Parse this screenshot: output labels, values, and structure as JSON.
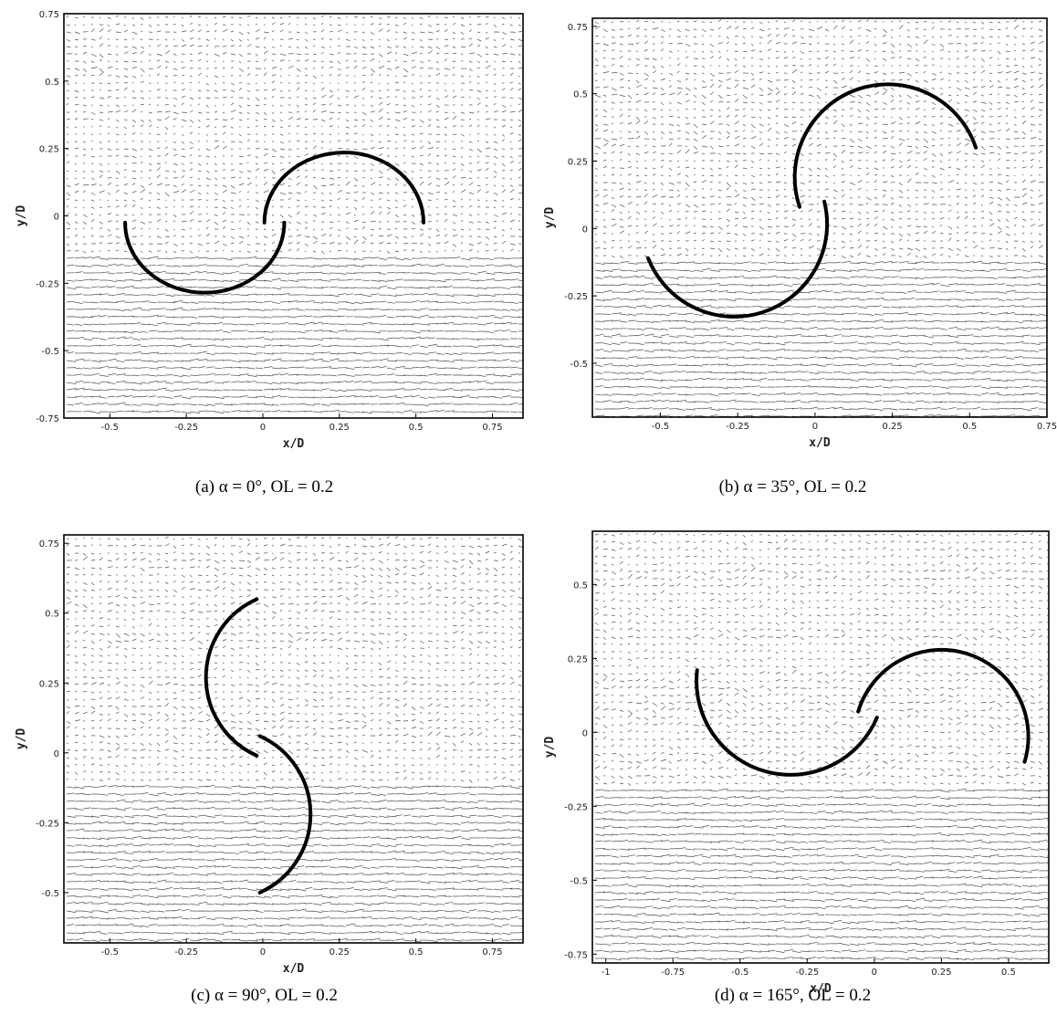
{
  "chart_data": [
    {
      "type": "vector-field",
      "panel": "a",
      "caption": "(a) α = 0°, OL = 0.2",
      "xlabel": "x/D",
      "ylabel": "y/D",
      "xlim": [
        -0.65,
        0.85
      ],
      "ylim": [
        -0.75,
        0.75
      ],
      "xticks": [
        -0.5,
        -0.25,
        0,
        0.25,
        0.5,
        0.75
      ],
      "xtick_labels": [
        "-0.5",
        "-0.25",
        "0",
        "0.25",
        "0.5",
        "0.75"
      ],
      "yticks": [
        -0.75,
        -0.5,
        -0.25,
        0,
        0.25,
        0.5,
        0.75
      ],
      "ytick_labels": [
        "-0.75",
        "-0.5",
        "-0.25",
        "0",
        "0.25",
        "0.5",
        "0.75"
      ],
      "blades": [
        {
          "center": [
            -0.19,
            -0.025
          ],
          "radius": 0.26,
          "start_deg": 180,
          "end_deg": 360,
          "direction": "below"
        },
        {
          "center": [
            0.265,
            -0.025
          ],
          "radius": 0.26,
          "start_deg": 180,
          "end_deg": 360,
          "direction": "above"
        }
      ]
    },
    {
      "type": "vector-field",
      "panel": "b",
      "caption": "(b) α = 35°, OL = 0.2",
      "xlabel": "x/D",
      "ylabel": "y/D",
      "xlim": [
        -0.72,
        0.75
      ],
      "ylim": [
        -0.7,
        0.78
      ],
      "xticks": [
        -0.5,
        -0.25,
        0,
        0.25,
        0.5,
        0.75
      ],
      "xtick_labels": [
        "-0.5",
        "-0.25",
        "0",
        "0.25",
        "0.5",
        "0.75"
      ],
      "yticks": [
        -0.5,
        -0.25,
        0,
        0.25,
        0.5,
        0.75
      ],
      "ytick_labels": [
        "-0.5",
        "-0.25",
        "0",
        "0.25",
        "0.5",
        "0.75"
      ],
      "blades": [
        {
          "start": [
            -0.54,
            -0.11
          ],
          "end": [
            0.03,
            0.1
          ],
          "radius": 0.3,
          "direction": "below"
        },
        {
          "start": [
            -0.05,
            0.08
          ],
          "end": [
            0.52,
            0.3
          ],
          "radius": 0.3,
          "direction": "above"
        }
      ]
    },
    {
      "type": "vector-field",
      "panel": "c",
      "caption": "(c) α = 90°, OL = 0.2",
      "xlabel": "x/D",
      "ylabel": "y/D",
      "xlim": [
        -0.65,
        0.85
      ],
      "ylim": [
        -0.68,
        0.78
      ],
      "xticks": [
        -0.5,
        -0.25,
        0,
        0.25,
        0.5,
        0.75
      ],
      "xtick_labels": [
        "-0.5",
        "-0.25",
        "0",
        "0.25",
        "0.5",
        "0.75"
      ],
      "yticks": [
        -0.5,
        -0.25,
        0,
        0.25,
        0.5,
        0.75
      ],
      "ytick_labels": [
        "-0.5",
        "-0.25",
        "0",
        "0.25",
        "0.5",
        "0.75"
      ],
      "blades": [
        {
          "start": [
            -0.02,
            0.55
          ],
          "end": [
            -0.02,
            -0.01
          ],
          "radius": 0.28,
          "direction": "left"
        },
        {
          "start": [
            -0.01,
            0.06
          ],
          "end": [
            -0.01,
            -0.5
          ],
          "radius": 0.28,
          "direction": "right"
        }
      ]
    },
    {
      "type": "vector-field",
      "panel": "d",
      "caption": "(d) α = 165°, OL = 0.2",
      "xlabel": "x/D",
      "ylabel": "y/D",
      "xlim": [
        -1.05,
        0.65
      ],
      "ylim": [
        -0.78,
        0.68
      ],
      "xticks": [
        -1,
        -0.75,
        -0.5,
        -0.25,
        0,
        0.25,
        0.5
      ],
      "xtick_labels": [
        "-1",
        "-0.75",
        "-0.5",
        "-0.25",
        "0",
        "0.25",
        "0.5"
      ],
      "yticks": [
        -0.75,
        -0.5,
        -0.25,
        0,
        0.25,
        0.5
      ],
      "ytick_labels": [
        "-0.75",
        "-0.5",
        "-0.25",
        "0",
        "0.25",
        "0.5"
      ],
      "blades": [
        {
          "start": [
            -0.66,
            0.21
          ],
          "end": [
            0.01,
            0.05
          ],
          "radius": 0.35,
          "direction": "below"
        },
        {
          "start": [
            -0.06,
            0.07
          ],
          "end": [
            0.56,
            -0.1
          ],
          "radius": 0.32,
          "direction": "above"
        }
      ]
    }
  ]
}
